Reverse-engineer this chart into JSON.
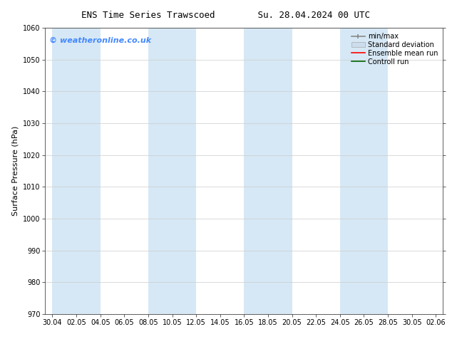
{
  "title_left": "ENS Time Series Trawscoed",
  "title_right": "Su. 28.04.2024 00 UTC",
  "ylabel": "Surface Pressure (hPa)",
  "ylim": [
    970,
    1060
  ],
  "yticks": [
    970,
    980,
    990,
    1000,
    1010,
    1020,
    1030,
    1040,
    1050,
    1060
  ],
  "xtick_labels": [
    "30.04",
    "02.05",
    "04.05",
    "06.05",
    "08.05",
    "10.05",
    "12.05",
    "14.05",
    "16.05",
    "18.05",
    "20.05",
    "22.05",
    "24.05",
    "26.05",
    "28.05",
    "30.05",
    "02.06"
  ],
  "background_color": "#ffffff",
  "plot_bg_color": "#ffffff",
  "watermark": "© weatheronline.co.uk",
  "watermark_color": "#4488ff",
  "legend_entries": [
    "min/max",
    "Standard deviation",
    "Ensemble mean run",
    "Controll run"
  ],
  "shade_color": "#d6e8f5",
  "shade_alpha": 1.0,
  "title_fontsize": 9,
  "tick_fontsize": 7,
  "ylabel_fontsize": 8,
  "legend_fontsize": 7,
  "watermark_fontsize": 8
}
